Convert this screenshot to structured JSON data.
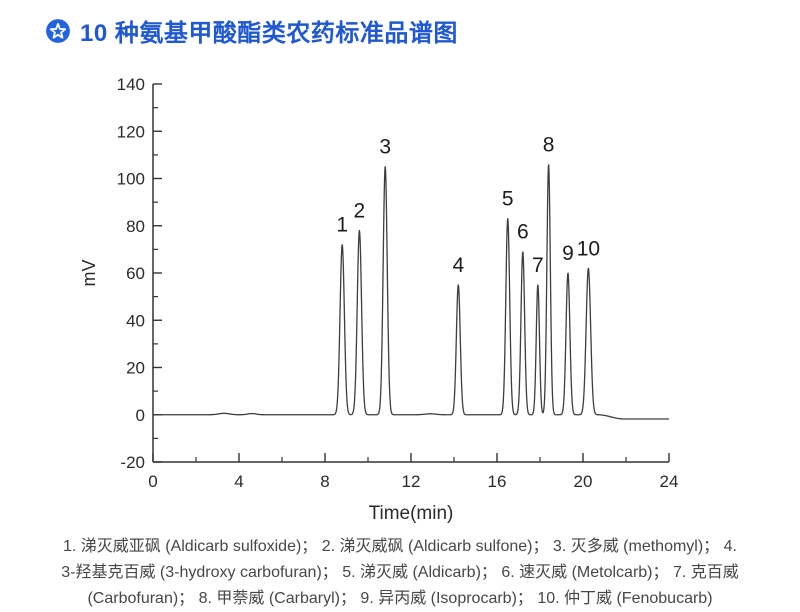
{
  "header": {
    "icon": "star-badge-icon",
    "title": "10 种氨基甲酸酯类农药标准品谱图",
    "accent_color": "#1f58d1",
    "icon_color": "#2363dd"
  },
  "chart_data": {
    "type": "line",
    "title": "",
    "xlabel": "Time(min)",
    "ylabel": "mV",
    "xlim": [
      0,
      24
    ],
    "ylim": [
      -20,
      140
    ],
    "x_major_ticks": [
      0,
      4,
      8,
      12,
      16,
      20,
      24
    ],
    "x_minor_step": 2,
    "y_major_ticks": [
      -20,
      0,
      20,
      40,
      60,
      80,
      100,
      120,
      140
    ],
    "y_minor_step": 10,
    "grid": false,
    "legend_position": "none",
    "line_color": "#3d3d3d",
    "axis_color": "#333333",
    "tick_label_color": "#2b2b2b",
    "peak_label_color": "#1c1c1c",
    "peaks": [
      {
        "label": "1",
        "time_min": 8.8,
        "height_mv": 72,
        "sigma_min": 0.1,
        "compound_cn": "涕灭威亚砜",
        "compound_en": "Aldicarb sulfoxide"
      },
      {
        "label": "2",
        "time_min": 9.6,
        "height_mv": 78,
        "sigma_min": 0.1,
        "compound_cn": "涕灭威砜",
        "compound_en": "Aldicarb sulfone"
      },
      {
        "label": "3",
        "time_min": 10.8,
        "height_mv": 105,
        "sigma_min": 0.095,
        "compound_cn": "灭多威",
        "compound_en": "methomyl"
      },
      {
        "label": "4",
        "time_min": 14.2,
        "height_mv": 55,
        "sigma_min": 0.09,
        "compound_cn": "3-羟基克百威",
        "compound_en": "3-hydroxy carbofuran"
      },
      {
        "label": "5",
        "time_min": 16.5,
        "height_mv": 83,
        "sigma_min": 0.09,
        "compound_cn": "涕灭威",
        "compound_en": "Aldicarb"
      },
      {
        "label": "6",
        "time_min": 17.2,
        "height_mv": 69,
        "sigma_min": 0.085,
        "compound_cn": "速灭威",
        "compound_en": "Metolcarb"
      },
      {
        "label": "7",
        "time_min": 17.9,
        "height_mv": 55,
        "sigma_min": 0.075,
        "compound_cn": "克百威",
        "compound_en": "Carbofuran"
      },
      {
        "label": "8",
        "time_min": 18.4,
        "height_mv": 106,
        "sigma_min": 0.08,
        "compound_cn": "甲萘威",
        "compound_en": "Carbaryl"
      },
      {
        "label": "9",
        "time_min": 19.3,
        "height_mv": 60,
        "sigma_min": 0.09,
        "compound_cn": "异丙威",
        "compound_en": "Isoprocarb"
      },
      {
        "label": "10",
        "time_min": 20.25,
        "height_mv": 62,
        "sigma_min": 0.105,
        "compound_cn": "仲丁威",
        "compound_en": "Fenobucarb"
      }
    ],
    "baseline_drift": {
      "start_min": 20.7,
      "end_min": 21.9,
      "level_mv": -1.8
    },
    "noise_bumps": [
      {
        "time_min": 3.3,
        "height_mv": 0.6,
        "sigma_min": 0.25
      },
      {
        "time_min": 4.6,
        "height_mv": 0.5,
        "sigma_min": 0.2
      },
      {
        "time_min": 12.9,
        "height_mv": 0.4,
        "sigma_min": 0.25
      }
    ]
  },
  "caption": {
    "lines": [
      "1. 涕灭威亚砜 (Aldicarb sulfoxide)； 2. 涕灭威砜 (Aldicarb sulfone)； 3. 灭多威 (methomyl)； 4.",
      "3-羟基克百威 (3-hydroxy carbofuran)； 5. 涕灭威 (Aldicarb)； 6. 速灭威 (Metolcarb)； 7. 克百威",
      "(Carbofuran)； 8. 甲萘威 (Carbaryl)； 9. 异丙威 (Isoprocarb)； 10. 仲丁威 (Fenobucarb)"
    ]
  }
}
